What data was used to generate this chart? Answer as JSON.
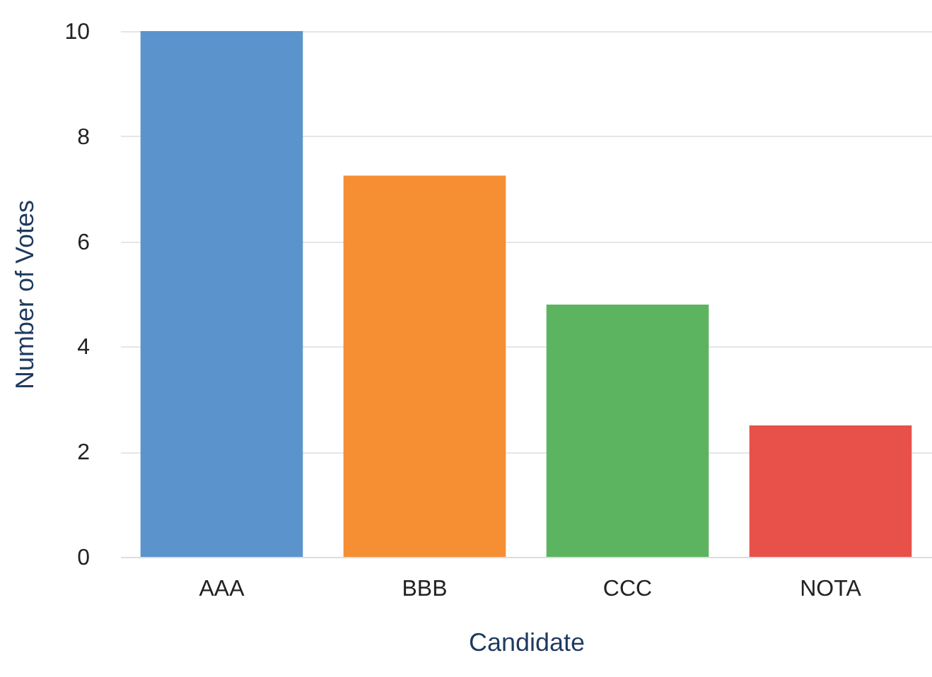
{
  "chart_data": {
    "type": "bar",
    "xlabel": "Candidate",
    "ylabel": "Number of Votes",
    "categories": [
      "AAA",
      "BBB",
      "CCC",
      "NOTA"
    ],
    "values": [
      10,
      7.25,
      4.8,
      2.5
    ],
    "colors": [
      "#5b93cc",
      "#f68e34",
      "#5cb460",
      "#e8504a"
    ],
    "ylim": [
      0,
      10
    ],
    "yticks": [
      0,
      2,
      4,
      6,
      8,
      10
    ],
    "grid": "y",
    "legend": false
  }
}
